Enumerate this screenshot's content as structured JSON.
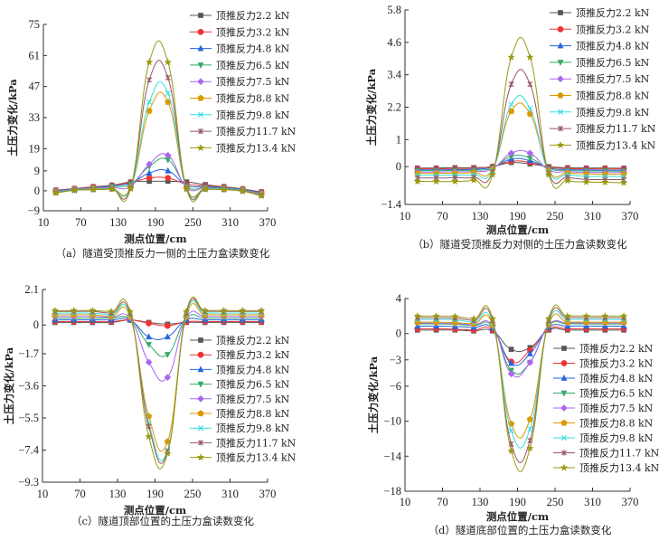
{
  "chart_data": [
    {
      "id": "a",
      "type": "line",
      "title": "",
      "caption": "（a）隧道受顶推反力一侧的土压力盒读数变化",
      "xlabel": "测点位置/cm",
      "ylabel": "土压力变化/kPa",
      "xlim": [
        10,
        370
      ],
      "ylim": [
        -9,
        75
      ],
      "xticks": [
        10,
        70,
        130,
        190,
        250,
        310,
        370
      ],
      "yticks": [
        -9,
        0,
        9,
        19,
        33,
        47,
        61,
        75
      ],
      "grid": false,
      "legend_position": "top-right",
      "x": [
        30,
        60,
        90,
        120,
        150,
        180,
        210,
        240,
        270,
        300,
        330,
        360
      ],
      "series": [
        {
          "name": "顶推反力2.2 kN",
          "values": [
            0.3,
            1.0,
            1.8,
            2.5,
            4.0,
            4.3,
            4.3,
            4.0,
            2.8,
            1.8,
            0.8,
            -0.5
          ]
        },
        {
          "name": "顶推反力3.2 kN",
          "values": [
            0.2,
            1.0,
            1.8,
            2.5,
            3.8,
            5.8,
            5.8,
            3.0,
            2.3,
            1.8,
            0.8,
            -0.6
          ]
        },
        {
          "name": "顶推反力4.8 kN",
          "values": [
            0.0,
            0.8,
            1.5,
            2.3,
            3.5,
            8.0,
            9.0,
            2.5,
            2.0,
            1.5,
            0.6,
            -0.8
          ]
        },
        {
          "name": "顶推反力6.5 kN",
          "values": [
            -0.3,
            0.6,
            1.2,
            2.0,
            3.0,
            11.0,
            14.0,
            2.0,
            1.5,
            1.2,
            0.4,
            -1.2
          ]
        },
        {
          "name": "顶推反力7.5 kN",
          "values": [
            -0.3,
            0.6,
            1.2,
            1.5,
            2.0,
            12.0,
            16.0,
            1.5,
            1.3,
            1.0,
            0.3,
            -1.2
          ]
        },
        {
          "name": "顶推反力8.8 kN",
          "values": [
            -0.5,
            0.5,
            1.0,
            1.0,
            1.5,
            36.0,
            40.0,
            1.2,
            1.0,
            0.8,
            0.2,
            -1.5
          ]
        },
        {
          "name": "顶推反力9.8 kN",
          "values": [
            -0.6,
            0.5,
            0.8,
            1.0,
            1.3,
            40.0,
            44.0,
            1.0,
            1.0,
            0.8,
            0.2,
            -1.8
          ]
        },
        {
          "name": "顶推反力11.7 kN",
          "values": [
            -0.8,
            0.3,
            0.6,
            0.8,
            1.2,
            50.0,
            51.0,
            1.0,
            0.8,
            0.6,
            0.0,
            -2.0
          ]
        },
        {
          "name": "顶推反力13.4 kN",
          "values": [
            -1.0,
            0.2,
            0.5,
            0.8,
            1.0,
            58.0,
            58.0,
            0.8,
            0.7,
            0.5,
            -0.2,
            -2.3
          ]
        }
      ]
    },
    {
      "id": "b",
      "type": "line",
      "title": "",
      "caption": "（b）隧道受顶推反力对侧的土压力盒读数变化",
      "xlabel": "测点位置/cm",
      "ylabel": "土压力变化/kPa",
      "xlim": [
        10,
        370
      ],
      "ylim": [
        -1.4,
        5.8
      ],
      "xticks": [
        10,
        70,
        130,
        190,
        250,
        310,
        370
      ],
      "yticks": [
        -1.4,
        0,
        1,
        2.2,
        3.4,
        4.6,
        5.8
      ],
      "grid": false,
      "legend_position": "top-right",
      "x": [
        30,
        60,
        90,
        120,
        150,
        180,
        210,
        240,
        270,
        300,
        330,
        360
      ],
      "series": [
        {
          "name": "顶推反力2.2 kN",
          "values": [
            -0.05,
            -0.05,
            -0.04,
            -0.04,
            0.0,
            0.15,
            0.1,
            0.0,
            -0.04,
            -0.05,
            -0.05,
            -0.06
          ]
        },
        {
          "name": "顶推反力3.2 kN",
          "values": [
            -0.08,
            -0.08,
            -0.07,
            -0.06,
            0.0,
            0.2,
            0.15,
            -0.02,
            -0.07,
            -0.08,
            -0.08,
            -0.09
          ]
        },
        {
          "name": "顶推反力4.8 kN",
          "values": [
            -0.12,
            -0.12,
            -0.11,
            -0.1,
            -0.02,
            0.28,
            0.22,
            -0.05,
            -0.11,
            -0.12,
            -0.13,
            -0.13
          ]
        },
        {
          "name": "顶推反力6.5 kN",
          "values": [
            -0.15,
            -0.15,
            -0.14,
            -0.13,
            -0.05,
            0.38,
            0.32,
            -0.08,
            -0.14,
            -0.16,
            -0.16,
            -0.17
          ]
        },
        {
          "name": "顶推反力7.5 kN",
          "values": [
            -0.2,
            -0.2,
            -0.19,
            -0.18,
            -0.08,
            0.5,
            0.5,
            -0.12,
            -0.19,
            -0.21,
            -0.22,
            -0.22
          ]
        },
        {
          "name": "顶推反力8.8 kN",
          "values": [
            -0.25,
            -0.25,
            -0.24,
            -0.22,
            -0.1,
            2.05,
            1.95,
            -0.15,
            -0.24,
            -0.27,
            -0.28,
            -0.28
          ]
        },
        {
          "name": "顶推反力9.8 kN",
          "values": [
            -0.32,
            -0.32,
            -0.31,
            -0.3,
            -0.15,
            2.3,
            2.15,
            -0.2,
            -0.3,
            -0.36,
            -0.36,
            -0.37
          ]
        },
        {
          "name": "顶推反力11.7 kN",
          "values": [
            -0.42,
            -0.42,
            -0.41,
            -0.4,
            -0.2,
            3.05,
            3.05,
            -0.25,
            -0.4,
            -0.47,
            -0.48,
            -0.48
          ]
        },
        {
          "name": "顶推反力13.4 kN",
          "values": [
            -0.55,
            -0.55,
            -0.55,
            -0.5,
            -0.3,
            4.05,
            4.05,
            -0.3,
            -0.52,
            -0.57,
            -0.58,
            -0.6
          ]
        }
      ]
    },
    {
      "id": "c",
      "type": "line",
      "title": "",
      "caption": "（c）隧道顶部位置的土压力盒读数变化",
      "xlabel": "测点位置/cm",
      "ylabel": "土压力变化/kPa",
      "xlim": [
        10,
        370
      ],
      "ylim": [
        -9.3,
        2.1
      ],
      "xticks": [
        10,
        70,
        130,
        190,
        250,
        310,
        370
      ],
      "yticks": [
        -9.3,
        -7.4,
        -5.5,
        -3.6,
        -1.7,
        0,
        2.1
      ],
      "grid": false,
      "legend_position": "right",
      "x": [
        30,
        60,
        90,
        120,
        150,
        180,
        210,
        240,
        270,
        300,
        330,
        360
      ],
      "series": [
        {
          "name": "顶推反力2.2 kN",
          "values": [
            0.15,
            0.15,
            0.15,
            0.15,
            0.3,
            0.15,
            0.05,
            0.15,
            0.15,
            0.15,
            0.15,
            0.15
          ]
        },
        {
          "name": "顶推反力3.2 kN",
          "values": [
            0.2,
            0.2,
            0.2,
            0.2,
            0.3,
            0.1,
            -0.05,
            0.2,
            0.2,
            0.2,
            0.2,
            0.2
          ]
        },
        {
          "name": "顶推反力4.8 kN",
          "values": [
            0.3,
            0.3,
            0.3,
            0.3,
            0.3,
            -0.7,
            -0.7,
            0.3,
            0.3,
            0.3,
            0.3,
            0.3
          ]
        },
        {
          "name": "顶推反力6.5 kN",
          "values": [
            0.4,
            0.4,
            0.4,
            0.4,
            0.35,
            -1.15,
            -1.75,
            0.4,
            0.4,
            0.4,
            0.4,
            0.4
          ]
        },
        {
          "name": "顶推反力7.5 kN",
          "values": [
            0.5,
            0.5,
            0.5,
            0.45,
            0.4,
            -2.2,
            -3.1,
            0.45,
            0.5,
            0.5,
            0.5,
            0.5
          ]
        },
        {
          "name": "顶推反力8.8 kN",
          "values": [
            0.6,
            0.6,
            0.6,
            0.5,
            0.5,
            -5.4,
            -6.9,
            0.5,
            0.6,
            0.6,
            0.6,
            0.6
          ]
        },
        {
          "name": "顶推反力9.8 kN",
          "values": [
            0.7,
            0.7,
            0.7,
            0.6,
            0.6,
            -5.8,
            -7.4,
            0.6,
            0.7,
            0.7,
            0.7,
            0.7
          ]
        },
        {
          "name": "顶推反力11.7 kN",
          "values": [
            0.8,
            0.8,
            0.8,
            0.7,
            0.7,
            -6.0,
            -7.5,
            0.7,
            0.8,
            0.8,
            0.8,
            0.8
          ]
        },
        {
          "name": "顶推反力13.4 kN",
          "values": [
            0.85,
            0.85,
            0.85,
            0.8,
            0.8,
            -6.6,
            -7.6,
            0.8,
            0.85,
            0.85,
            0.85,
            0.85
          ]
        }
      ]
    },
    {
      "id": "d",
      "type": "line",
      "title": "",
      "caption": "（d）隧道底部位置的土压力盒读数变化",
      "xlabel": "测点位置/cm",
      "ylabel": "土压力变化/kPa",
      "xlim": [
        10,
        370
      ],
      "ylim": [
        -18,
        4
      ],
      "xticks": [
        10,
        70,
        130,
        190,
        250,
        310,
        370
      ],
      "yticks": [
        -18,
        -14,
        -10,
        -6,
        -3,
        0,
        4
      ],
      "grid": false,
      "legend_position": "right",
      "x": [
        30,
        60,
        90,
        120,
        150,
        180,
        210,
        240,
        270,
        300,
        330,
        360
      ],
      "series": [
        {
          "name": "顶推反力2.2 kN",
          "values": [
            0.4,
            0.4,
            0.4,
            0.3,
            0.3,
            -1.8,
            -1.6,
            0.4,
            0.4,
            0.4,
            0.4,
            0.4
          ]
        },
        {
          "name": "顶推反力3.2 kN",
          "values": [
            0.55,
            0.55,
            0.5,
            0.4,
            0.4,
            -3.2,
            -1.9,
            0.5,
            0.55,
            0.55,
            0.55,
            0.55
          ]
        },
        {
          "name": "顶推反力4.8 kN",
          "values": [
            0.85,
            0.85,
            0.8,
            0.7,
            0.6,
            -3.4,
            -2.3,
            0.7,
            0.85,
            0.85,
            0.85,
            0.85
          ]
        },
        {
          "name": "顶推反力6.5 kN",
          "values": [
            1.1,
            1.1,
            1.05,
            0.9,
            0.8,
            -4.2,
            -3.3,
            0.9,
            1.1,
            1.1,
            1.1,
            1.1
          ]
        },
        {
          "name": "顶推反力7.5 kN",
          "values": [
            1.2,
            1.2,
            1.15,
            1.0,
            0.9,
            -4.6,
            -3.3,
            1.0,
            1.2,
            1.2,
            1.2,
            1.2
          ]
        },
        {
          "name": "顶推反力8.8 kN",
          "values": [
            1.3,
            1.3,
            1.25,
            1.1,
            1.0,
            -10.3,
            -9.8,
            1.1,
            1.3,
            1.3,
            1.3,
            1.3
          ]
        },
        {
          "name": "顶推反力9.8 kN",
          "values": [
            1.6,
            1.6,
            1.55,
            1.3,
            1.2,
            -11.1,
            -10.9,
            1.3,
            1.6,
            1.6,
            1.6,
            1.6
          ]
        },
        {
          "name": "顶推反力11.7 kN",
          "values": [
            1.8,
            1.8,
            1.75,
            1.5,
            1.5,
            -12.6,
            -12.2,
            1.5,
            1.8,
            1.8,
            1.8,
            1.8
          ]
        },
        {
          "name": "顶推反力13.4 kN",
          "values": [
            2.0,
            2.0,
            1.95,
            1.7,
            1.7,
            -13.4,
            -13.1,
            1.7,
            2.0,
            2.0,
            2.0,
            2.0
          ]
        }
      ]
    }
  ],
  "series_styles": [
    {
      "color": "#555555",
      "marker": "square"
    },
    {
      "color": "#ee3333",
      "marker": "circle"
    },
    {
      "color": "#2266dd",
      "marker": "triangle-up"
    },
    {
      "color": "#33aa66",
      "marker": "triangle-down"
    },
    {
      "color": "#aa66ee",
      "marker": "diamond"
    },
    {
      "color": "#dd9900",
      "marker": "pentagon"
    },
    {
      "color": "#33dddd",
      "marker": "x"
    },
    {
      "color": "#995566",
      "marker": "asterisk"
    },
    {
      "color": "#999911",
      "marker": "star"
    }
  ]
}
